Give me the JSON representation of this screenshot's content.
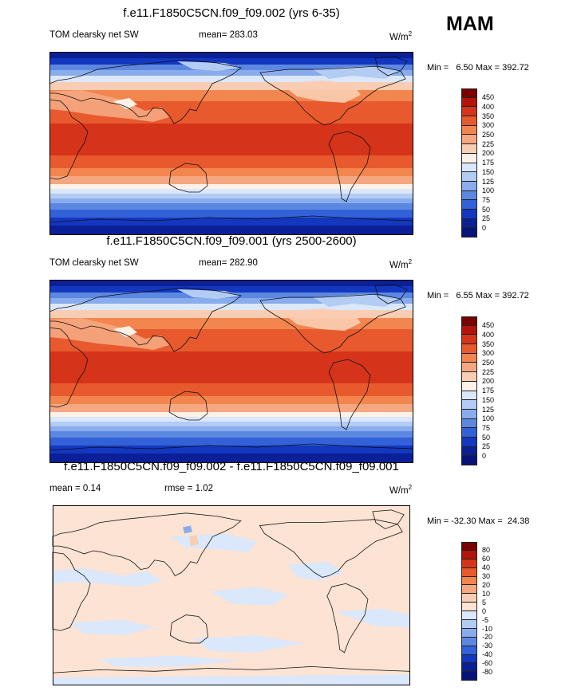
{
  "season": "MAM",
  "chart_data": [
    {
      "type": "heatmap",
      "title": "f.e11.F1850C5CN.f09_f09.002 (yrs 6-35)",
      "variable": "TOM clearsky net SW",
      "mean_text": "mean= 283.03",
      "mean": 283.03,
      "units": "W/m",
      "units_exp": "2",
      "min": 6.5,
      "max": 392.72,
      "minmax_text": "Min =   6.50 Max = 392.72",
      "levels": [
        "450",
        "400",
        "350",
        "300",
        "250",
        "225",
        "200",
        "175",
        "150",
        "125",
        "100",
        "75",
        "50",
        "25",
        "0"
      ],
      "colors": [
        "#7a0000",
        "#b2140a",
        "#d6341a",
        "#e85a2d",
        "#f2864e",
        "#f5a781",
        "#f9cdb3",
        "#fdf1e8",
        "#dbe7fa",
        "#b3ccf4",
        "#89acec",
        "#5d88e2",
        "#3362d8",
        "#1437c0",
        "#0b1f96",
        "#061477"
      ]
    },
    {
      "type": "heatmap",
      "title": "f.e11.F1850C5CN.f09_f09.001 (yrs 2500-2600)",
      "variable": "TOM clearsky net SW",
      "mean_text": "mean= 282.90",
      "mean": 282.9,
      "units": "W/m",
      "units_exp": "2",
      "min": 6.55,
      "max": 392.72,
      "minmax_text": "Min =   6.55 Max = 392.72",
      "levels": [
        "450",
        "400",
        "350",
        "300",
        "250",
        "225",
        "200",
        "175",
        "150",
        "125",
        "100",
        "75",
        "50",
        "25",
        "0"
      ],
      "colors": [
        "#7a0000",
        "#b2140a",
        "#d6341a",
        "#e85a2d",
        "#f2864e",
        "#f5a781",
        "#f9cdb3",
        "#fdf1e8",
        "#dbe7fa",
        "#b3ccf4",
        "#89acec",
        "#5d88e2",
        "#3362d8",
        "#1437c0",
        "#0b1f96",
        "#061477"
      ]
    },
    {
      "type": "heatmap",
      "title": "f.e11.F1850C5CN.f09_f09.002 - f.e11.F1850C5CN.f09_f09.001",
      "mean_text": "mean =   0.14",
      "mean": 0.14,
      "rmse_text": "rmse =   1.02",
      "rmse": 1.02,
      "units": "W/m",
      "units_exp": "2",
      "min": -32.3,
      "max": 24.38,
      "minmax_text": "Min = -32.30 Max =  24.38",
      "levels": [
        "80",
        "60",
        "40",
        "30",
        "20",
        "10",
        "5",
        "0",
        "-5",
        "-10",
        "-20",
        "-30",
        "-40",
        "-60",
        "-80"
      ],
      "colors": [
        "#7a0000",
        "#b2140a",
        "#d6341a",
        "#e85a2d",
        "#f2864e",
        "#f5a781",
        "#f9cdb3",
        "#fde3d3",
        "#dbe7fa",
        "#b3ccf4",
        "#89acec",
        "#5d88e2",
        "#3362d8",
        "#1437c0",
        "#0b1f96",
        "#061477"
      ]
    }
  ]
}
